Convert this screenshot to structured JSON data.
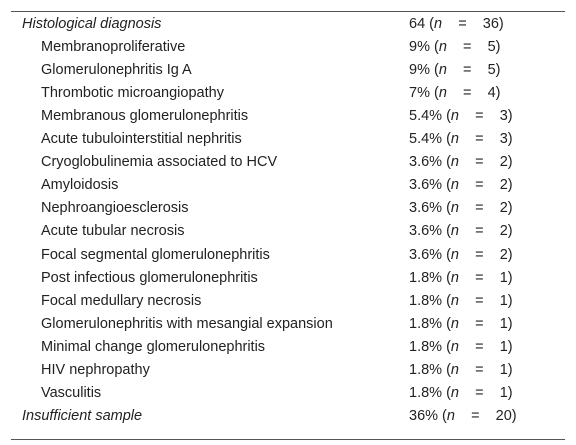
{
  "table": {
    "sections": [
      {
        "title": "Histological diagnosis",
        "value": [
          "64 (",
          "n",
          "    =    36)"
        ],
        "items": [
          {
            "label": "Membranoproliferative",
            "value": [
              "9% (",
              "n",
              "    =    5)"
            ]
          },
          {
            "label": "Glomerulonephritis Ig A",
            "value": [
              "9% (",
              "n",
              "    =    5)"
            ]
          },
          {
            "label": "Thrombotic microangiopathy",
            "value": [
              "7% (",
              "n",
              "    =    4)"
            ]
          },
          {
            "label": "Membranous glomerulonephritis",
            "value": [
              "5.4% (",
              "n",
              "    =    3)"
            ]
          },
          {
            "label": "Acute tubulointerstitial nephritis",
            "value": [
              "5.4% (",
              "n",
              "    =    3)"
            ]
          },
          {
            "label": "Cryoglobulinemia associated to HCV",
            "value": [
              "3.6% (",
              "n",
              "    =    2)"
            ]
          },
          {
            "label": "Amyloidosis",
            "value": [
              "3.6% (",
              "n",
              "    =    2)"
            ]
          },
          {
            "label": "Nephroangioesclerosis",
            "value": [
              "3.6% (",
              "n",
              "    =    2)"
            ]
          },
          {
            "label": "Acute tubular necrosis",
            "value": [
              "3.6% (",
              "n",
              "    =    2)"
            ]
          },
          {
            "label": "Focal segmental glomerulonephritis",
            "value": [
              "3.6% (",
              "n",
              "    =    2)"
            ]
          },
          {
            "label": "Post infectious glomerulonephritis",
            "value": [
              "1.8% (",
              "n",
              "    =    1)"
            ]
          },
          {
            "label": "Focal medullary necrosis",
            "value": [
              "1.8% (",
              "n",
              "    =    1)"
            ]
          },
          {
            "label": "Glomerulonephritis with mesangial expansion",
            "value": [
              "1.8% (",
              "n",
              "    =    1)"
            ]
          },
          {
            "label": "Minimal change glomerulonephritis",
            "value": [
              "1.8% (",
              "n",
              "    =    1)"
            ]
          },
          {
            "label": "HIV nephropathy",
            "value": [
              "1.8% (",
              "n",
              "    =    1)"
            ]
          },
          {
            "label": "Vasculitis",
            "value": [
              "1.8% (",
              "n",
              "    =    1)"
            ]
          }
        ]
      },
      {
        "title": "Insufficient sample",
        "value": [
          "36% (",
          "n",
          "    =    20)"
        ],
        "items": []
      }
    ]
  }
}
